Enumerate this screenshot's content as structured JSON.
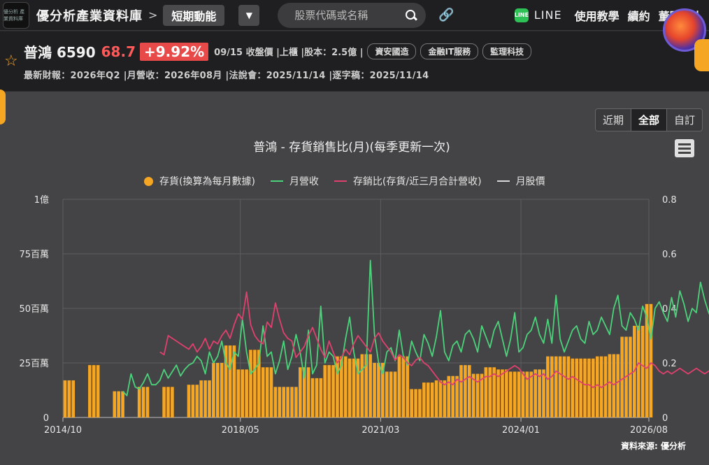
{
  "topbar": {
    "logo_text": "優分析 產業資料庫",
    "brand": "優分析產業資料庫",
    "separator": ">",
    "crumb": "短期動能",
    "dropdown": "▼",
    "search_placeholder": "股票代碼或名稱",
    "line_label": "LINE",
    "nav": [
      "使用教學",
      "續約",
      "董監達人"
    ]
  },
  "stock": {
    "name": "普鴻 6590",
    "price": "68.7",
    "change": "+9.92%",
    "meta": "09/15 收盤價 |上櫃 |股本：2.5億 |",
    "tags": [
      "資安國造",
      "金融IT服務",
      "監理科技"
    ],
    "reports": "最新財報：2026年Q2 |月營收：2026年08月 |法說會：2025/11/14 |逐字稿：2025/11/14"
  },
  "range_buttons": [
    "近期",
    "全部",
    "自訂"
  ],
  "source": "資料來源: 優分析",
  "colors": {
    "inventory": "#f5a623",
    "revenue": "#4cd27b",
    "ratio": "#e0406e",
    "price": "#d8d8d8"
  },
  "chart_data": {
    "type": "bar+line",
    "title": "普鴻 - 存貨銷售比(月)(每季更新一次)",
    "legend": [
      "存貨(換算為每月數據)",
      "月營收",
      "存銷比(存貨/近三月合計營收)",
      "月股價"
    ],
    "legend_position": "top",
    "x_ticks": [
      "2014/10",
      "2018/05",
      "2021/03",
      "2024/01",
      "2026/08"
    ],
    "x_range_months": [
      "2014/10",
      "2026/08"
    ],
    "y_left_ticks": [
      "0",
      "25百萬",
      "50百萬",
      "75百萬",
      "1億"
    ],
    "y_left_range": [
      0,
      100
    ],
    "y_left_unit": "百萬",
    "y_right_ticks": [
      "0",
      "0.2",
      "0.4",
      "0.6",
      "0.8"
    ],
    "y_right_range": [
      0,
      0.8
    ],
    "grid": true,
    "inventory_quarters": {
      "start": "2014/10",
      "values": [
        17,
        null,
        24,
        null,
        12,
        null,
        14,
        null,
        14,
        null,
        15,
        17,
        25,
        33,
        22,
        31,
        23,
        14,
        14,
        23,
        18,
        24,
        28,
        27,
        29,
        25,
        21,
        28,
        13,
        16,
        17,
        19,
        24,
        20,
        23,
        22,
        21,
        21,
        22,
        28,
        28,
        27,
        27,
        28,
        29,
        37,
        42,
        52
      ]
    },
    "revenue_monthly": {
      "start": "2015/12",
      "values": [
        12,
        10,
        20,
        14,
        13,
        16,
        20,
        15,
        15,
        17,
        22,
        18,
        21,
        24,
        19,
        22,
        24,
        25,
        28,
        26,
        20,
        30,
        25,
        28,
        35,
        25,
        22,
        30,
        28,
        45,
        30,
        20,
        22,
        25,
        42,
        28,
        30,
        20,
        26,
        35,
        22,
        28,
        38,
        30,
        18,
        40,
        20,
        24,
        51,
        25,
        30,
        28,
        20,
        24,
        36,
        46,
        30,
        20,
        22,
        24,
        72,
        38,
        25,
        20,
        30,
        32,
        26,
        40,
        28,
        24,
        35,
        30,
        26,
        38,
        34,
        28,
        37,
        49,
        30,
        26,
        33,
        35,
        30,
        38,
        40,
        36,
        30,
        42,
        37,
        32,
        40,
        44,
        36,
        28,
        36,
        48,
        30,
        32,
        38,
        40,
        46,
        38,
        34,
        45,
        34,
        56,
        36,
        30,
        35,
        40,
        42,
        36,
        34,
        44,
        38,
        40,
        46,
        42,
        38,
        50,
        56,
        42,
        40,
        48,
        45,
        40,
        51,
        46,
        36,
        50,
        53,
        48,
        44,
        55,
        46,
        58,
        52,
        44,
        50,
        48,
        62,
        54,
        48,
        44,
        58,
        66,
        56,
        52,
        72,
        55,
        42,
        50,
        46,
        44,
        48,
        40,
        38,
        46,
        40,
        38,
        42,
        40,
        36,
        44,
        48,
        42,
        56,
        46,
        60,
        50,
        55,
        48,
        52,
        56,
        48,
        52,
        46,
        58,
        50,
        56,
        54,
        48,
        60,
        70,
        78,
        60,
        62
      ]
    },
    "ratio_monthly": {
      "start": "2016/09",
      "values": [
        0.24,
        0.23,
        0.3,
        0.29,
        0.28,
        0.27,
        0.26,
        0.25,
        0.27,
        0.24,
        0.26,
        0.29,
        0.25,
        0.28,
        0.27,
        0.3,
        0.32,
        0.29,
        0.34,
        0.38,
        0.36,
        0.46,
        0.34,
        0.3,
        0.28,
        0.27,
        0.35,
        0.33,
        0.42,
        0.36,
        0.31,
        0.29,
        0.28,
        0.22,
        0.24,
        0.26,
        0.3,
        0.33,
        0.29,
        0.25,
        0.22,
        0.28,
        0.24,
        0.2,
        0.22,
        0.25,
        0.23,
        0.27,
        0.3,
        0.28,
        0.26,
        0.24,
        0.29,
        0.31,
        0.28,
        0.26,
        0.24,
        0.21,
        0.23,
        0.22,
        0.2,
        0.19,
        0.21,
        0.22,
        0.2,
        0.19,
        0.17,
        0.15,
        0.13,
        0.12,
        0.13,
        0.12,
        0.14,
        0.13,
        0.14,
        0.15,
        0.14,
        0.13,
        0.14,
        0.15,
        0.15,
        0.16,
        0.15,
        0.16,
        0.17,
        0.18,
        0.19,
        0.18,
        0.16,
        0.14,
        0.15,
        0.16,
        0.15,
        0.16,
        0.14,
        0.15,
        0.17,
        0.16,
        0.15,
        0.14,
        0.15,
        0.14,
        0.13,
        0.12,
        0.12,
        0.11,
        0.12,
        0.11,
        0.12,
        0.13,
        0.12,
        0.13,
        0.14,
        0.15,
        0.16,
        0.17,
        0.2,
        0.19,
        0.18,
        0.2,
        0.19,
        0.17,
        0.16,
        0.17,
        0.16,
        0.17,
        0.18,
        0.17,
        0.16,
        0.17,
        0.18,
        0.17,
        0.16,
        0.17,
        0.18,
        0.19,
        0.2,
        0.21,
        0.22,
        0.21,
        0.22,
        0.23,
        0.22,
        0.25,
        0.26,
        0.23,
        0.27,
        0.29,
        0.26,
        0.28,
        0.25,
        0.24,
        0.26
      ]
    }
  }
}
